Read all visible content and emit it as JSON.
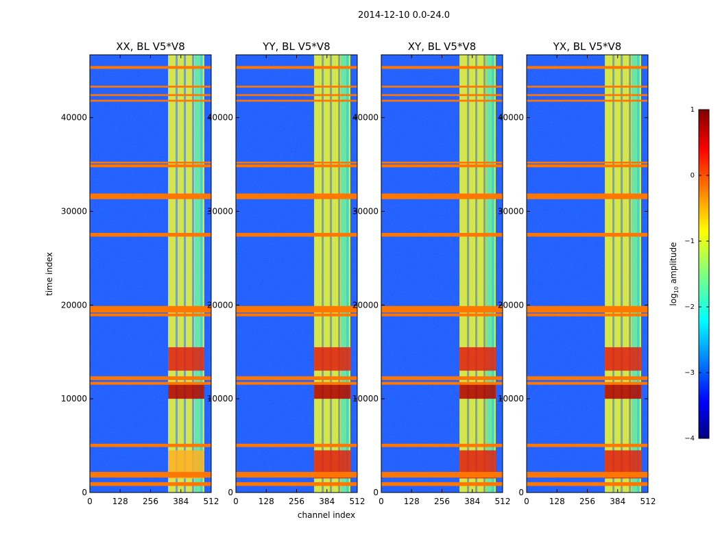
{
  "figure": {
    "suptitle": "2014-12-10 0.0-24.0"
  },
  "chart_data": {
    "type": "heatmap",
    "suptitle": "2014-12-10 0.0-24.0",
    "xlabel": "channel index",
    "ylabel": "time index",
    "xlim": [
      0,
      512
    ],
    "ylim": [
      0,
      46700
    ],
    "xticks": [
      0,
      128,
      256,
      384,
      512
    ],
    "yticks": [
      0,
      10000,
      20000,
      30000,
      40000
    ],
    "panels": [
      {
        "title": "XX, BL V5*V8",
        "polarization": "XX"
      },
      {
        "title": "YY, BL V5*V8",
        "polarization": "YY"
      },
      {
        "title": "XY, BL V5*V8",
        "polarization": "XY"
      },
      {
        "title": "YX, BL V5*V8",
        "polarization": "YX"
      }
    ],
    "colorbar": {
      "label": "log10 amplitude",
      "label_prefix": "log",
      "label_sub": "10",
      "label_suffix": " amplitude",
      "range": [
        -4,
        1
      ],
      "ticks": [
        1,
        0,
        -1,
        -2,
        -3,
        -4
      ],
      "tick_labels": [
        "1",
        "0",
        "−1",
        "−2",
        "−3",
        "−4"
      ],
      "colormap": "jet"
    },
    "flagged_color": "#ff7700",
    "flagged_time_bands": [
      [
        700,
        1100
      ],
      [
        1600,
        2200
      ],
      [
        4850,
        5200
      ],
      [
        11500,
        11800
      ],
      [
        12000,
        12400
      ],
      [
        18800,
        19100
      ],
      [
        19200,
        19900
      ],
      [
        27300,
        27700
      ],
      [
        31300,
        31900
      ],
      [
        34700,
        35000
      ],
      [
        35100,
        35300
      ],
      [
        41700,
        41900
      ],
      [
        42300,
        42500
      ],
      [
        43200,
        43400
      ],
      [
        45200,
        45500
      ]
    ],
    "strong_signal_channels": [
      330,
      512
    ],
    "strong_signal_peak_times": [
      [
        10000,
        11500
      ],
      [
        13000,
        15500
      ],
      [
        1500,
        4500
      ]
    ]
  }
}
